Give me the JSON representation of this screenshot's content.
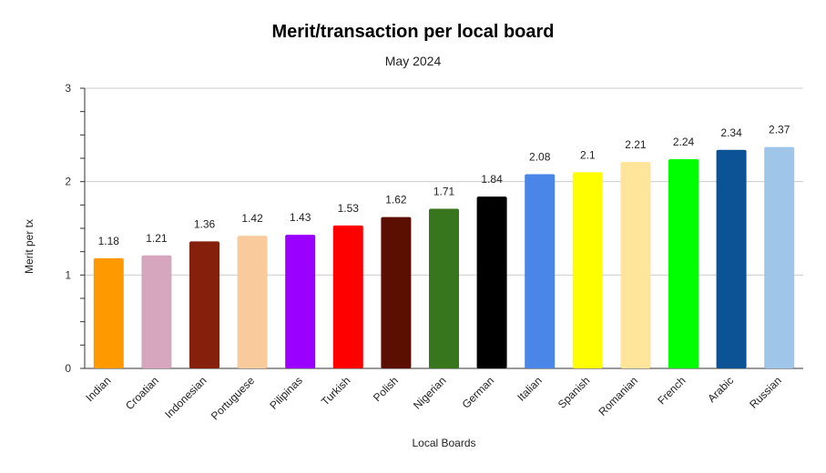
{
  "chart_data": {
    "type": "bar",
    "title": "Merit/transaction per local board",
    "subtitle": "May 2024",
    "xlabel": "Local Boards",
    "ylabel": "Merit per tx",
    "ylim": [
      0,
      3
    ],
    "yticks": [
      0,
      1,
      2,
      3
    ],
    "grid": true,
    "legend": "none",
    "categories": [
      "Indian",
      "Croatian",
      "Indonesian",
      "Portuguese",
      "Pilipinas",
      "Turkish",
      "Polish",
      "Nigerian",
      "German",
      "Italian",
      "Spanish",
      "Romanian",
      "French",
      "Arabic",
      "Russian"
    ],
    "values": [
      1.18,
      1.21,
      1.36,
      1.42,
      1.43,
      1.53,
      1.62,
      1.71,
      1.84,
      2.08,
      2.1,
      2.21,
      2.24,
      2.34,
      2.37
    ],
    "value_labels": [
      "1.18",
      "1.21",
      "1.36",
      "1.42",
      "1.43",
      "1.53",
      "1.62",
      "1.71",
      "1.84",
      "2.08",
      "2.1",
      "2.21",
      "2.24",
      "2.34",
      "2.37"
    ],
    "colors": [
      "#ff9900",
      "#d5a6bd",
      "#85200c",
      "#f9cb9c",
      "#9900ff",
      "#ff0000",
      "#5b0f00",
      "#38761d",
      "#000000",
      "#4a86e8",
      "#ffff00",
      "#ffe599",
      "#00ff00",
      "#0b5394",
      "#9fc5e8"
    ]
  }
}
